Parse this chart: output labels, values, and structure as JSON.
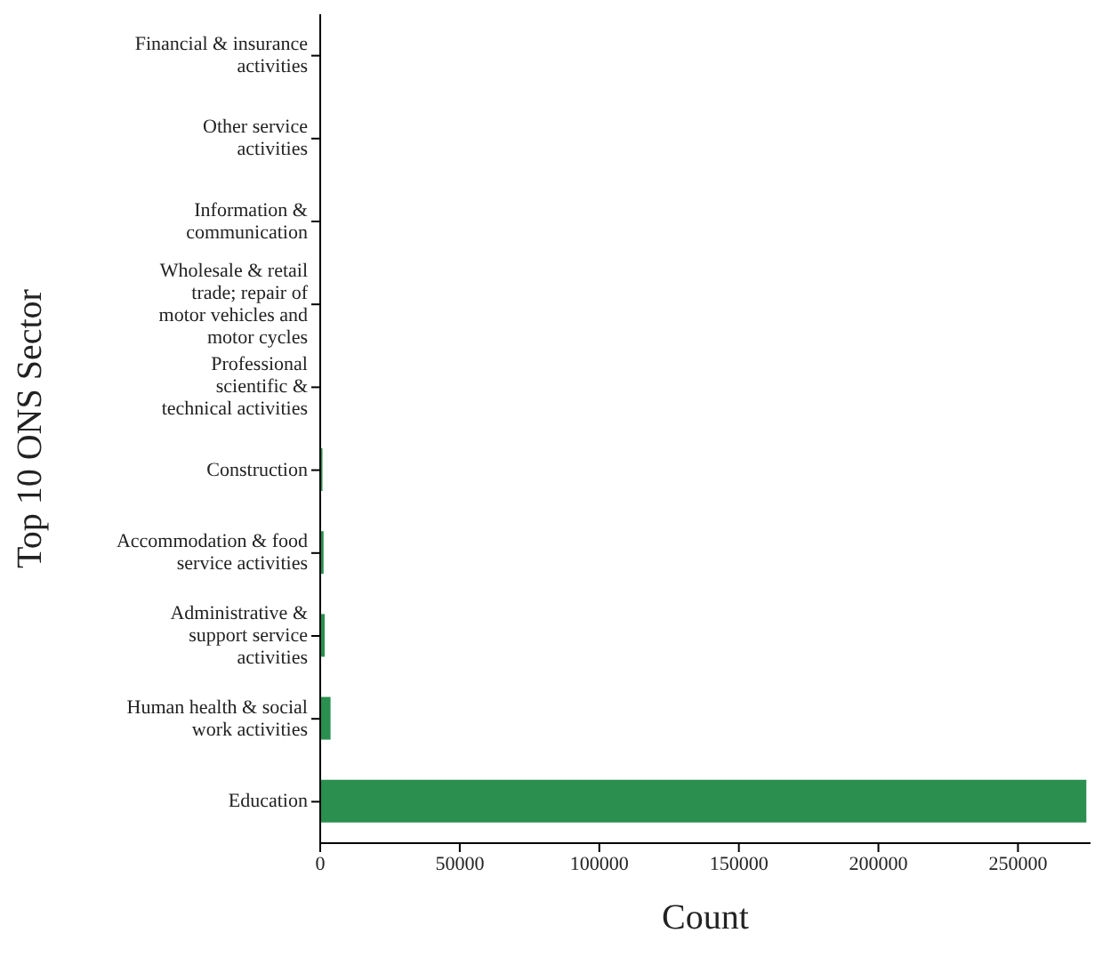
{
  "chart_data": {
    "type": "bar",
    "orientation": "horizontal",
    "xlabel": "Count",
    "ylabel": "Top 10 ONS Sector",
    "categories": [
      "Financial & insurance activities",
      "Other service activities",
      "Information & communication",
      "Wholesale & retail trade; repair of motor vehicles and motor cycles",
      "Professional scientific & technical activities",
      "Construction",
      "Accommodation & food service activities",
      "Administrative & support service activities",
      "Human health & social work activities",
      "Education"
    ],
    "values": [
      null,
      null,
      null,
      null,
      null,
      800,
      1200,
      1600,
      3700,
      274500
    ],
    "color": "#2a8f4f",
    "xlim": [
      0,
      276000
    ],
    "xticks": [
      0,
      50000,
      100000,
      150000,
      200000,
      250000
    ],
    "grid": false,
    "legend": false
  }
}
